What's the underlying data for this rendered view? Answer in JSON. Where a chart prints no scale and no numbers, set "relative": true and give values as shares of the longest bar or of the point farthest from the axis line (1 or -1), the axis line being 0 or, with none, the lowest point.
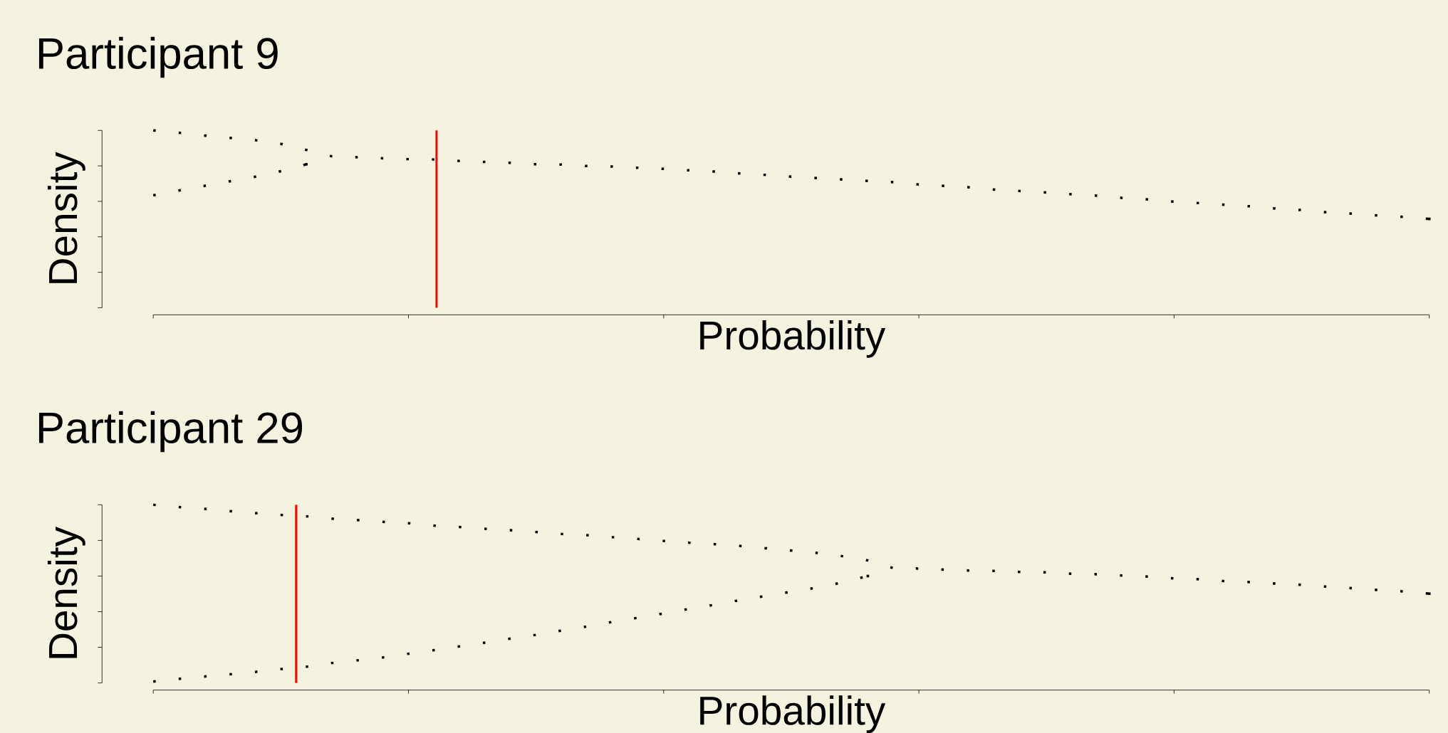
{
  "chart_data": [
    {
      "type": "line",
      "title": "Participant 9",
      "xlabel": "Probability",
      "ylabel": "Density",
      "relative": true,
      "line_style": "dotted",
      "categories": [
        null,
        null,
        null,
        null,
        null,
        null,
        null,
        null,
        null,
        null,
        null,
        null,
        null,
        null,
        null,
        null,
        null,
        null,
        null,
        null,
        null,
        null,
        null,
        null,
        null,
        null,
        null,
        null,
        null,
        null,
        null,
        null,
        null,
        null,
        null,
        null,
        null,
        null,
        null,
        null,
        null,
        null,
        null,
        null,
        null,
        null,
        null,
        null,
        null,
        null,
        null
      ],
      "series": [
        {
          "color": "#000000",
          "values": [
            1.0,
            0.987,
            0.971,
            0.958,
            0.945,
            0.924,
            0.89,
            0.854,
            0.849,
            0.843,
            0.838,
            0.836,
            0.828,
            0.822,
            0.817,
            0.809,
            0.807,
            0.799,
            0.796,
            0.789,
            0.783,
            0.775,
            0.768,
            0.757,
            0.749,
            0.739,
            0.731,
            0.723,
            0.715,
            0.708,
            0.695,
            0.687,
            0.679,
            0.666,
            0.658,
            0.65,
            0.64,
            0.632,
            0.619,
            0.611,
            0.598,
            0.59,
            0.58,
            0.572,
            0.559,
            0.551,
            0.538,
            0.53,
            0.52,
            0.512,
            0.501
          ]
        },
        {
          "color": "#000000",
          "values": [
            0.634,
            0.661,
            0.687,
            0.713,
            0.739,
            0.77,
            0.809,
            null,
            null,
            null,
            null,
            null,
            null,
            null,
            null,
            null,
            null,
            null,
            null,
            null,
            null,
            null,
            null,
            null,
            null,
            null,
            null,
            null,
            null,
            null,
            null,
            null,
            null,
            null,
            null,
            null,
            null,
            null,
            null,
            null,
            null,
            null,
            null,
            null,
            null,
            null,
            null,
            null,
            null,
            null,
            null
          ]
        }
      ]
    },
    {
      "type": "line",
      "title": "Participant 29",
      "xlabel": "Probability",
      "ylabel": "Density",
      "relative": true,
      "line_style": "dotted",
      "categories": [
        null,
        null,
        null,
        null,
        null,
        null,
        null,
        null,
        null,
        null,
        null,
        null,
        null,
        null,
        null,
        null,
        null,
        null,
        null,
        null,
        null,
        null,
        null,
        null,
        null,
        null,
        null,
        null,
        null,
        null,
        null,
        null,
        null,
        null,
        null,
        null,
        null,
        null,
        null,
        null,
        null,
        null,
        null,
        null,
        null,
        null,
        null,
        null,
        null,
        null,
        null
      ],
      "series": [
        {
          "color": "#000000",
          "values": [
            1.0,
            0.987,
            0.977,
            0.964,
            0.953,
            0.943,
            0.935,
            0.922,
            0.914,
            0.904,
            0.896,
            0.883,
            0.875,
            0.865,
            0.857,
            0.847,
            0.836,
            0.829,
            0.818,
            0.808,
            0.797,
            0.787,
            0.779,
            0.769,
            0.756,
            0.743,
            0.73,
            0.712,
            0.688,
            0.644,
            0.642,
            0.636,
            0.631,
            0.629,
            0.623,
            0.621,
            0.613,
            0.61,
            0.603,
            0.597,
            0.587,
            0.582,
            0.571,
            0.566,
            0.558,
            0.551,
            0.54,
            0.532,
            0.522,
            0.514,
            0.501
          ]
        },
        {
          "color": "#000000",
          "values": [
            0.008,
            0.023,
            0.036,
            0.049,
            0.062,
            0.078,
            0.091,
            0.112,
            0.127,
            0.143,
            0.164,
            0.184,
            0.205,
            0.226,
            0.249,
            0.27,
            0.294,
            0.317,
            0.343,
            0.366,
            0.39,
            0.416,
            0.439,
            0.465,
            0.488,
            0.512,
            0.535,
            0.564,
            0.6,
            null,
            null,
            null,
            null,
            null,
            null,
            null,
            null,
            null,
            null,
            null,
            null,
            null,
            null,
            null,
            null,
            null,
            null,
            null,
            null,
            null,
            null
          ]
        }
      ]
    }
  ]
}
